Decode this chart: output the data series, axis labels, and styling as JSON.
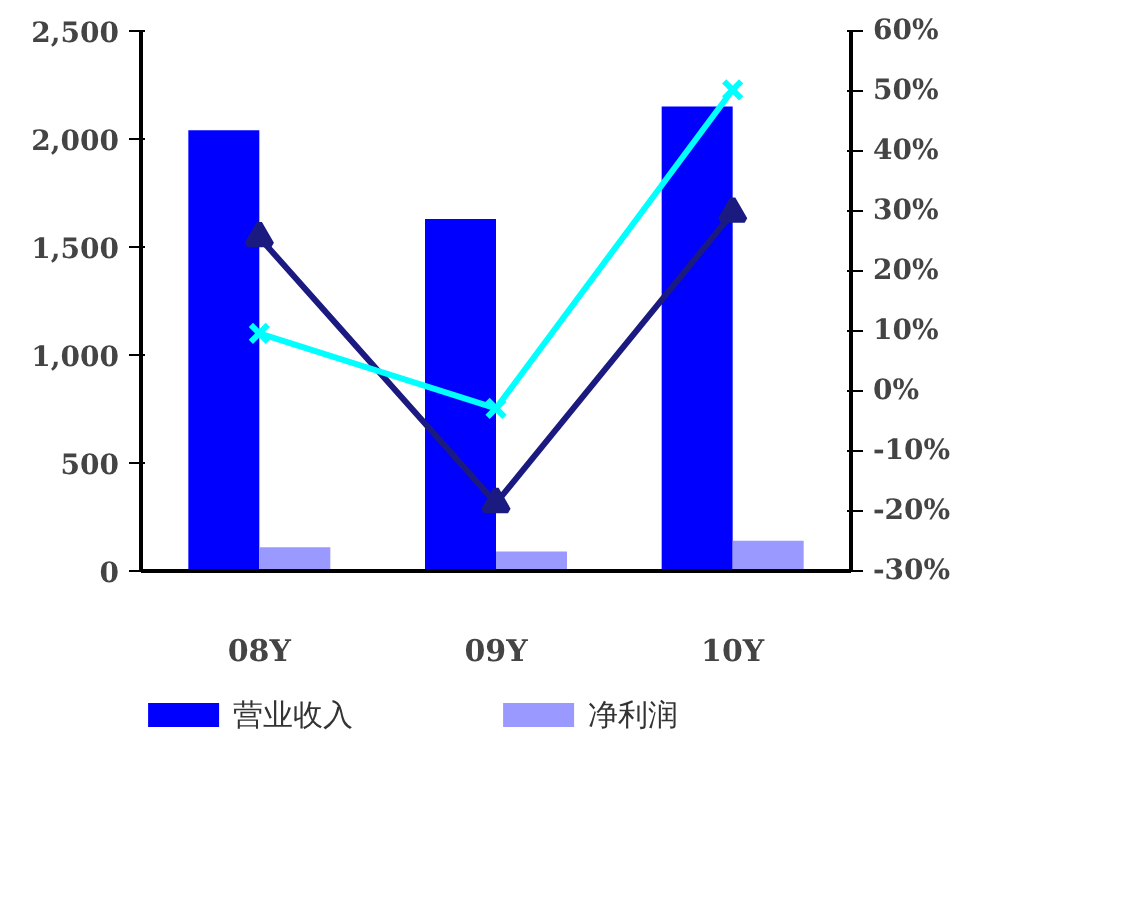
{
  "chart_data": {
    "type": "bar",
    "categories": [
      "08Y",
      "09Y",
      "10Y"
    ],
    "series": [
      {
        "name": "营业收入",
        "color": "#0000ff",
        "values": [
          2040,
          1630,
          2150
        ]
      },
      {
        "name": "净利润",
        "color": "#9999ff",
        "values": [
          110,
          90,
          140
        ]
      },
      {
        "type": "line",
        "axis": "y2",
        "color": "#1a1a80",
        "marker": "triangle",
        "values": [
          25.6,
          -18.7,
          29.7
        ]
      },
      {
        "type": "line",
        "axis": "y2",
        "color": "#00ffff",
        "marker": "cross",
        "values": [
          9.6,
          -2.9,
          50.2
        ]
      }
    ],
    "ylim": [
      0,
      2500
    ],
    "yticks": [
      0,
      500,
      {
        "value": 1000,
        "label": "1,000"
      },
      {
        "value": 1500,
        "label": "1,500"
      },
      {
        "value": 2000,
        "label": "2,000"
      },
      {
        "value": 2500,
        "label": "2,500"
      }
    ],
    "y2lim": [
      -30,
      60
    ],
    "y2ticks": [
      {
        "value": -30,
        "label": "-30%"
      },
      {
        "value": -20,
        "label": "-20%"
      },
      {
        "value": -10,
        "label": "-10%"
      },
      {
        "value": 0,
        "label": "0%"
      },
      {
        "value": 10,
        "label": "10%"
      },
      {
        "value": 20,
        "label": "20%"
      },
      {
        "value": 30,
        "label": "30%"
      },
      {
        "value": 40,
        "label": "40%"
      },
      {
        "value": 50,
        "label": "50%"
      },
      {
        "value": 60,
        "label": "60%"
      }
    ],
    "grid": false,
    "legend": "bottom"
  }
}
